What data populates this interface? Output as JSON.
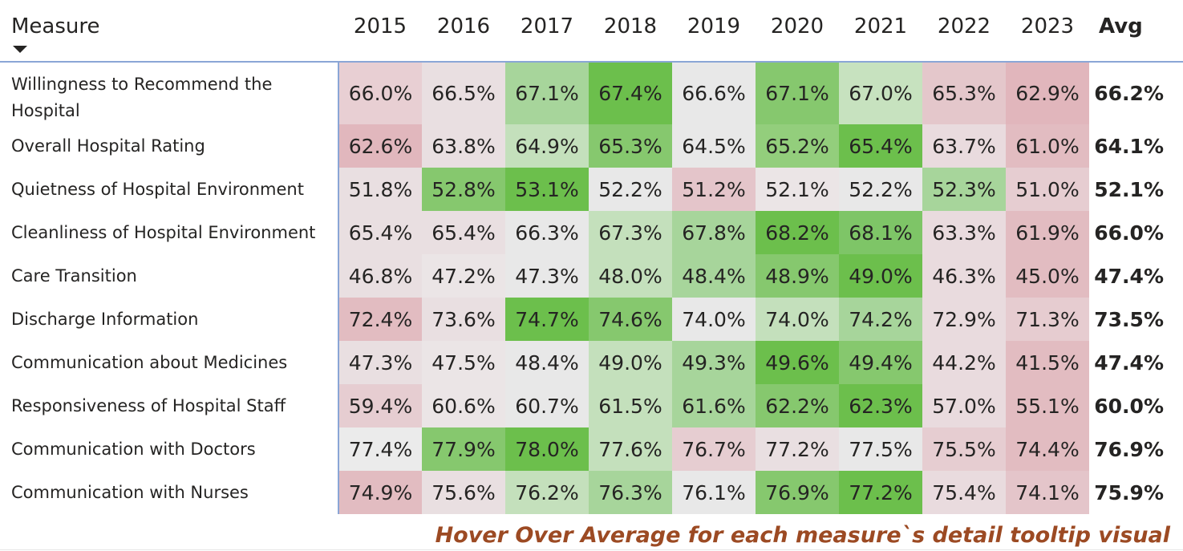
{
  "matrix": {
    "measure_header": "Measure",
    "avg_header": "Avg",
    "years": [
      "2015",
      "2016",
      "2017",
      "2018",
      "2019",
      "2020",
      "2021",
      "2022",
      "2023"
    ],
    "rows": [
      {
        "label": "Willingness to Recommend the Hospital",
        "values": [
          "66.0%",
          "66.5%",
          "67.1%",
          "67.4%",
          "66.6%",
          "67.1%",
          "67.0%",
          "65.3%",
          "62.9%"
        ],
        "colors": [
          "#e8cfd3",
          "#e9dfe1",
          "#a7d59b",
          "#6cbf4c",
          "#e8e8e8",
          "#86c86e",
          "#c7e2bf",
          "#e4c7cb",
          "#e1b6bc"
        ],
        "avg": "66.2%"
      },
      {
        "label": "Overall Hospital Rating",
        "values": [
          "62.6%",
          "63.8%",
          "64.9%",
          "65.3%",
          "64.5%",
          "65.2%",
          "65.4%",
          "63.7%",
          "61.0%"
        ],
        "colors": [
          "#e1b7bd",
          "#e9dfe1",
          "#c4e0bc",
          "#86c86e",
          "#e8e8e8",
          "#93ce7c",
          "#6cbf4c",
          "#e9dbde",
          "#e2bcc1"
        ],
        "avg": "64.1%"
      },
      {
        "label": "Quietness of Hospital Environment",
        "values": [
          "51.8%",
          "52.8%",
          "53.1%",
          "52.2%",
          "51.2%",
          "52.1%",
          "52.2%",
          "52.3%",
          "51.0%"
        ],
        "colors": [
          "#e9dfe1",
          "#86c86e",
          "#6cbf4c",
          "#e8e8e8",
          "#e4c5ca",
          "#ebe5e6",
          "#e8e8e8",
          "#a7d59b",
          "#e6cdd1"
        ],
        "avg": "52.1%"
      },
      {
        "label": "Cleanliness of Hospital Environment",
        "values": [
          "65.4%",
          "65.4%",
          "66.3%",
          "67.3%",
          "67.8%",
          "68.2%",
          "68.1%",
          "63.3%",
          "61.9%"
        ],
        "colors": [
          "#e9dfe1",
          "#e9dfe1",
          "#e8e8e8",
          "#c4e0bc",
          "#a7d59b",
          "#6cbf4c",
          "#7ec567",
          "#e9dbde",
          "#e2bcc1"
        ],
        "avg": "66.0%"
      },
      {
        "label": "Care Transition",
        "values": [
          "46.8%",
          "47.2%",
          "47.3%",
          "48.0%",
          "48.4%",
          "48.9%",
          "49.0%",
          "46.3%",
          "45.0%"
        ],
        "colors": [
          "#e9dfe1",
          "#ebe5e6",
          "#e8e8e8",
          "#c4e0bc",
          "#a7d59b",
          "#86c86e",
          "#6cbf4c",
          "#e9dbde",
          "#e2bcc1"
        ],
        "avg": "47.4%"
      },
      {
        "label": "Discharge Information",
        "values": [
          "72.4%",
          "73.6%",
          "74.7%",
          "74.6%",
          "74.0%",
          "74.0%",
          "74.2%",
          "72.9%",
          "71.3%"
        ],
        "colors": [
          "#e2bcc1",
          "#e9dfe1",
          "#6cbf4c",
          "#86c86e",
          "#e8e8e8",
          "#c4e0bc",
          "#a7d59b",
          "#e9dbde",
          "#e6ccd0"
        ],
        "avg": "73.5%"
      },
      {
        "label": "Communication about Medicines",
        "values": [
          "47.3%",
          "47.5%",
          "48.4%",
          "49.0%",
          "49.3%",
          "49.6%",
          "49.4%",
          "44.2%",
          "41.5%"
        ],
        "colors": [
          "#e9dfe1",
          "#ebe5e6",
          "#e8e8e8",
          "#c4e0bc",
          "#a7d59b",
          "#6cbf4c",
          "#86c86e",
          "#e9dbde",
          "#e2bcc1"
        ],
        "avg": "47.4%"
      },
      {
        "label": "Responsiveness of Hospital Staff",
        "values": [
          "59.4%",
          "60.6%",
          "60.7%",
          "61.5%",
          "61.6%",
          "62.2%",
          "62.3%",
          "57.0%",
          "55.1%"
        ],
        "colors": [
          "#e6cdd1",
          "#ebe5e6",
          "#e8e8e8",
          "#c4e0bc",
          "#a7d59b",
          "#86c86e",
          "#6cbf4c",
          "#e9dbde",
          "#e2bcc1"
        ],
        "avg": "60.0%"
      },
      {
        "label": "Communication with Doctors",
        "values": [
          "77.4%",
          "77.9%",
          "78.0%",
          "77.6%",
          "76.7%",
          "77.2%",
          "77.5%",
          "75.5%",
          "74.4%"
        ],
        "colors": [
          "#ebebeb",
          "#86c86e",
          "#6cbf4c",
          "#c4e0bc",
          "#e6cdd1",
          "#e9dfe1",
          "#e8e8e8",
          "#e6cdd1",
          "#e2bcc1"
        ],
        "avg": "76.9%"
      },
      {
        "label": "Communication with Nurses",
        "values": [
          "74.9%",
          "75.6%",
          "76.2%",
          "76.3%",
          "76.1%",
          "76.9%",
          "77.2%",
          "75.4%",
          "74.1%"
        ],
        "colors": [
          "#e2bcc1",
          "#e9dfe1",
          "#c4e0bc",
          "#a7d59b",
          "#e8e8e8",
          "#86c86e",
          "#6cbf4c",
          "#e9dbde",
          "#e4c5ca"
        ],
        "avg": "75.9%"
      }
    ]
  },
  "footer": {
    "note": "Hover Over Average for each measure`s detail tooltip visual",
    "note_color": "#9c4a23"
  },
  "icons": {
    "sort": "sort-descending-icon"
  }
}
